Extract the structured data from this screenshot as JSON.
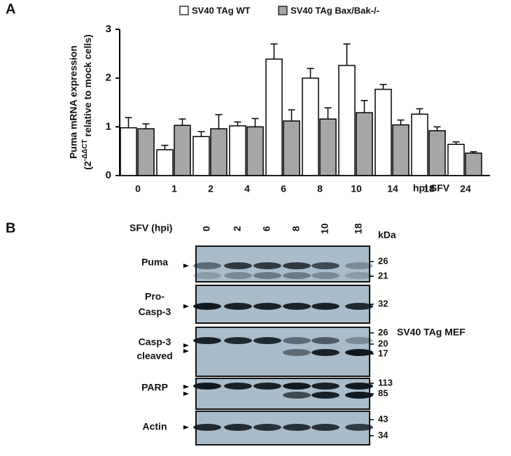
{
  "chart_data": {
    "type": "bar",
    "panel_label": "A",
    "categories": [
      "0",
      "1",
      "2",
      "4",
      "6",
      "8",
      "10",
      "14",
      "18",
      "24"
    ],
    "x_label": "hpi SFV",
    "y_label": "Puma mRNA expression",
    "y_label_2": {
      "open": "(2",
      "superscript": "-ΔΔCT",
      "rest": " relative to mock cells)"
    },
    "ylim": [
      0,
      3
    ],
    "yticks": [
      0,
      1,
      2,
      3
    ],
    "series": [
      {
        "name": "SV40 TAg WT",
        "color": "#ffffff",
        "values": [
          0.98,
          0.53,
          0.8,
          1.02,
          2.39,
          2.0,
          2.26,
          1.77,
          1.26,
          0.64
        ],
        "errors": [
          0.21,
          0.09,
          0.1,
          0.08,
          0.31,
          0.2,
          0.44,
          0.1,
          0.11,
          0.05
        ]
      },
      {
        "name": "SV40 TAg Bax/Bak-/-",
        "color": "#a6a6a6",
        "values": [
          0.96,
          1.03,
          0.96,
          1.0,
          1.12,
          1.16,
          1.29,
          1.04,
          0.92,
          0.46
        ],
        "errors": [
          0.1,
          0.13,
          0.29,
          0.17,
          0.23,
          0.23,
          0.25,
          0.1,
          0.08,
          0.03
        ]
      }
    ]
  },
  "panel_b": {
    "label": "B",
    "x_label": "SFV (hpi)",
    "lanes": [
      "0",
      "2",
      "6",
      "8",
      "10",
      "18"
    ],
    "kda_label": "kDa",
    "side_label": "SV40 TAg MEF",
    "rows": [
      {
        "name": [
          "Puma"
        ],
        "markers": [
          "26",
          "21"
        ]
      },
      {
        "name": [
          "Pro-",
          "Casp-3"
        ],
        "markers": [
          "32"
        ]
      },
      {
        "name": [
          "Casp-3",
          "cleaved"
        ],
        "markers": [
          "26",
          "20",
          "17"
        ]
      },
      {
        "name": [
          "PARP"
        ],
        "markers": [
          "113",
          "85"
        ]
      },
      {
        "name": [
          "Actin"
        ],
        "markers": [
          "43",
          "34"
        ]
      }
    ]
  }
}
